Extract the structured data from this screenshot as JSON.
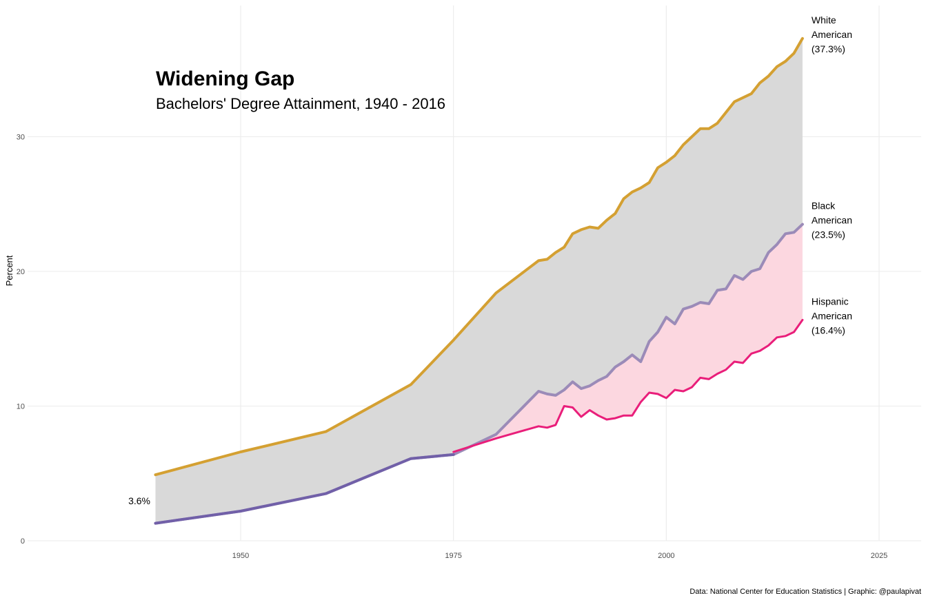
{
  "chart_data": {
    "type": "line",
    "title": "Widening Gap",
    "subtitle": "Bachelors' Degree Attainment, 1940 - 2016",
    "ylabel": "Percent",
    "xlabel": "",
    "xlim": [
      1930,
      2029
    ],
    "ylim": [
      0,
      40
    ],
    "x_ticks": [
      "1950",
      "1975",
      "2000",
      "2025"
    ],
    "y_ticks": [
      "0",
      "10",
      "20",
      "30"
    ],
    "grid": true,
    "caption": "Data: National Center for Education Statistics | Graphic: @paulapivat",
    "start_label": "3.6%",
    "series": [
      {
        "name": "White American",
        "end_label_lines": [
          "White",
          "American",
          "(37.3%)"
        ],
        "color": "#d4a032",
        "points": [
          [
            1940,
            4.9
          ],
          [
            1950,
            6.6
          ],
          [
            1960,
            8.1
          ],
          [
            1970,
            11.6
          ],
          [
            1975,
            14.9
          ],
          [
            1980,
            18.4
          ],
          [
            1985,
            20.8
          ],
          [
            1986,
            20.9
          ],
          [
            1987,
            21.4
          ],
          [
            1988,
            21.8
          ],
          [
            1989,
            22.8
          ],
          [
            1990,
            23.1
          ],
          [
            1991,
            23.3
          ],
          [
            1992,
            23.2
          ],
          [
            1993,
            23.8
          ],
          [
            1994,
            24.3
          ],
          [
            1995,
            25.4
          ],
          [
            1996,
            25.9
          ],
          [
            1997,
            26.2
          ],
          [
            1998,
            26.6
          ],
          [
            1999,
            27.7
          ],
          [
            2000,
            28.1
          ],
          [
            2001,
            28.6
          ],
          [
            2002,
            29.4
          ],
          [
            2003,
            30.0
          ],
          [
            2004,
            30.6
          ],
          [
            2005,
            30.6
          ],
          [
            2006,
            31.0
          ],
          [
            2007,
            31.8
          ],
          [
            2008,
            32.6
          ],
          [
            2009,
            32.9
          ],
          [
            2010,
            33.2
          ],
          [
            2011,
            34.0
          ],
          [
            2012,
            34.5
          ],
          [
            2013,
            35.2
          ],
          [
            2014,
            35.6
          ],
          [
            2015,
            36.2
          ],
          [
            2016,
            37.3
          ]
        ]
      },
      {
        "name": "Black American",
        "end_label_lines": [
          "Black",
          "American",
          "(23.5%)"
        ],
        "color": "#9b8bb8",
        "points": [
          [
            1940,
            1.3
          ],
          [
            1950,
            2.2
          ],
          [
            1960,
            3.5
          ],
          [
            1970,
            6.1
          ],
          [
            1975,
            6.4
          ],
          [
            1980,
            7.9
          ],
          [
            1985,
            11.1
          ],
          [
            1986,
            10.9
          ],
          [
            1987,
            10.8
          ],
          [
            1988,
            11.2
          ],
          [
            1989,
            11.8
          ],
          [
            1990,
            11.3
          ],
          [
            1991,
            11.5
          ],
          [
            1992,
            11.9
          ],
          [
            1993,
            12.2
          ],
          [
            1994,
            12.9
          ],
          [
            1995,
            13.3
          ],
          [
            1996,
            13.8
          ],
          [
            1997,
            13.3
          ],
          [
            1998,
            14.8
          ],
          [
            1999,
            15.5
          ],
          [
            2000,
            16.6
          ],
          [
            2001,
            16.1
          ],
          [
            2002,
            17.2
          ],
          [
            2003,
            17.4
          ],
          [
            2004,
            17.7
          ],
          [
            2005,
            17.6
          ],
          [
            2006,
            18.6
          ],
          [
            2007,
            18.7
          ],
          [
            2008,
            19.7
          ],
          [
            2009,
            19.4
          ],
          [
            2010,
            20.0
          ],
          [
            2011,
            20.2
          ],
          [
            2012,
            21.4
          ],
          [
            2013,
            22.0
          ],
          [
            2014,
            22.8
          ],
          [
            2015,
            22.9
          ],
          [
            2016,
            23.5
          ]
        ]
      },
      {
        "name": "Hispanic American",
        "end_label_lines": [
          "Hispanic",
          "American",
          "(16.4%)"
        ],
        "color": "#e91e7a",
        "points": [
          [
            1975,
            6.6
          ],
          [
            1980,
            7.6
          ],
          [
            1985,
            8.5
          ],
          [
            1986,
            8.4
          ],
          [
            1987,
            8.6
          ],
          [
            1988,
            10.0
          ],
          [
            1989,
            9.9
          ],
          [
            1990,
            9.2
          ],
          [
            1991,
            9.7
          ],
          [
            1992,
            9.3
          ],
          [
            1993,
            9.0
          ],
          [
            1994,
            9.1
          ],
          [
            1995,
            9.3
          ],
          [
            1996,
            9.3
          ],
          [
            1997,
            10.3
          ],
          [
            1998,
            11.0
          ],
          [
            1999,
            10.9
          ],
          [
            2000,
            10.6
          ],
          [
            2001,
            11.2
          ],
          [
            2002,
            11.1
          ],
          [
            2003,
            11.4
          ],
          [
            2004,
            12.1
          ],
          [
            2005,
            12.0
          ],
          [
            2006,
            12.4
          ],
          [
            2007,
            12.7
          ],
          [
            2008,
            13.3
          ],
          [
            2009,
            13.2
          ],
          [
            2010,
            13.9
          ],
          [
            2011,
            14.1
          ],
          [
            2012,
            14.5
          ],
          [
            2013,
            15.1
          ],
          [
            2014,
            15.2
          ],
          [
            2015,
            15.5
          ],
          [
            2016,
            16.4
          ]
        ]
      }
    ],
    "bands": [
      {
        "between": [
          "White American",
          "Black American"
        ],
        "color": "#d9d9d9"
      },
      {
        "between": [
          "Black American",
          "Hispanic American"
        ],
        "color": "#fcd7e0"
      }
    ]
  }
}
